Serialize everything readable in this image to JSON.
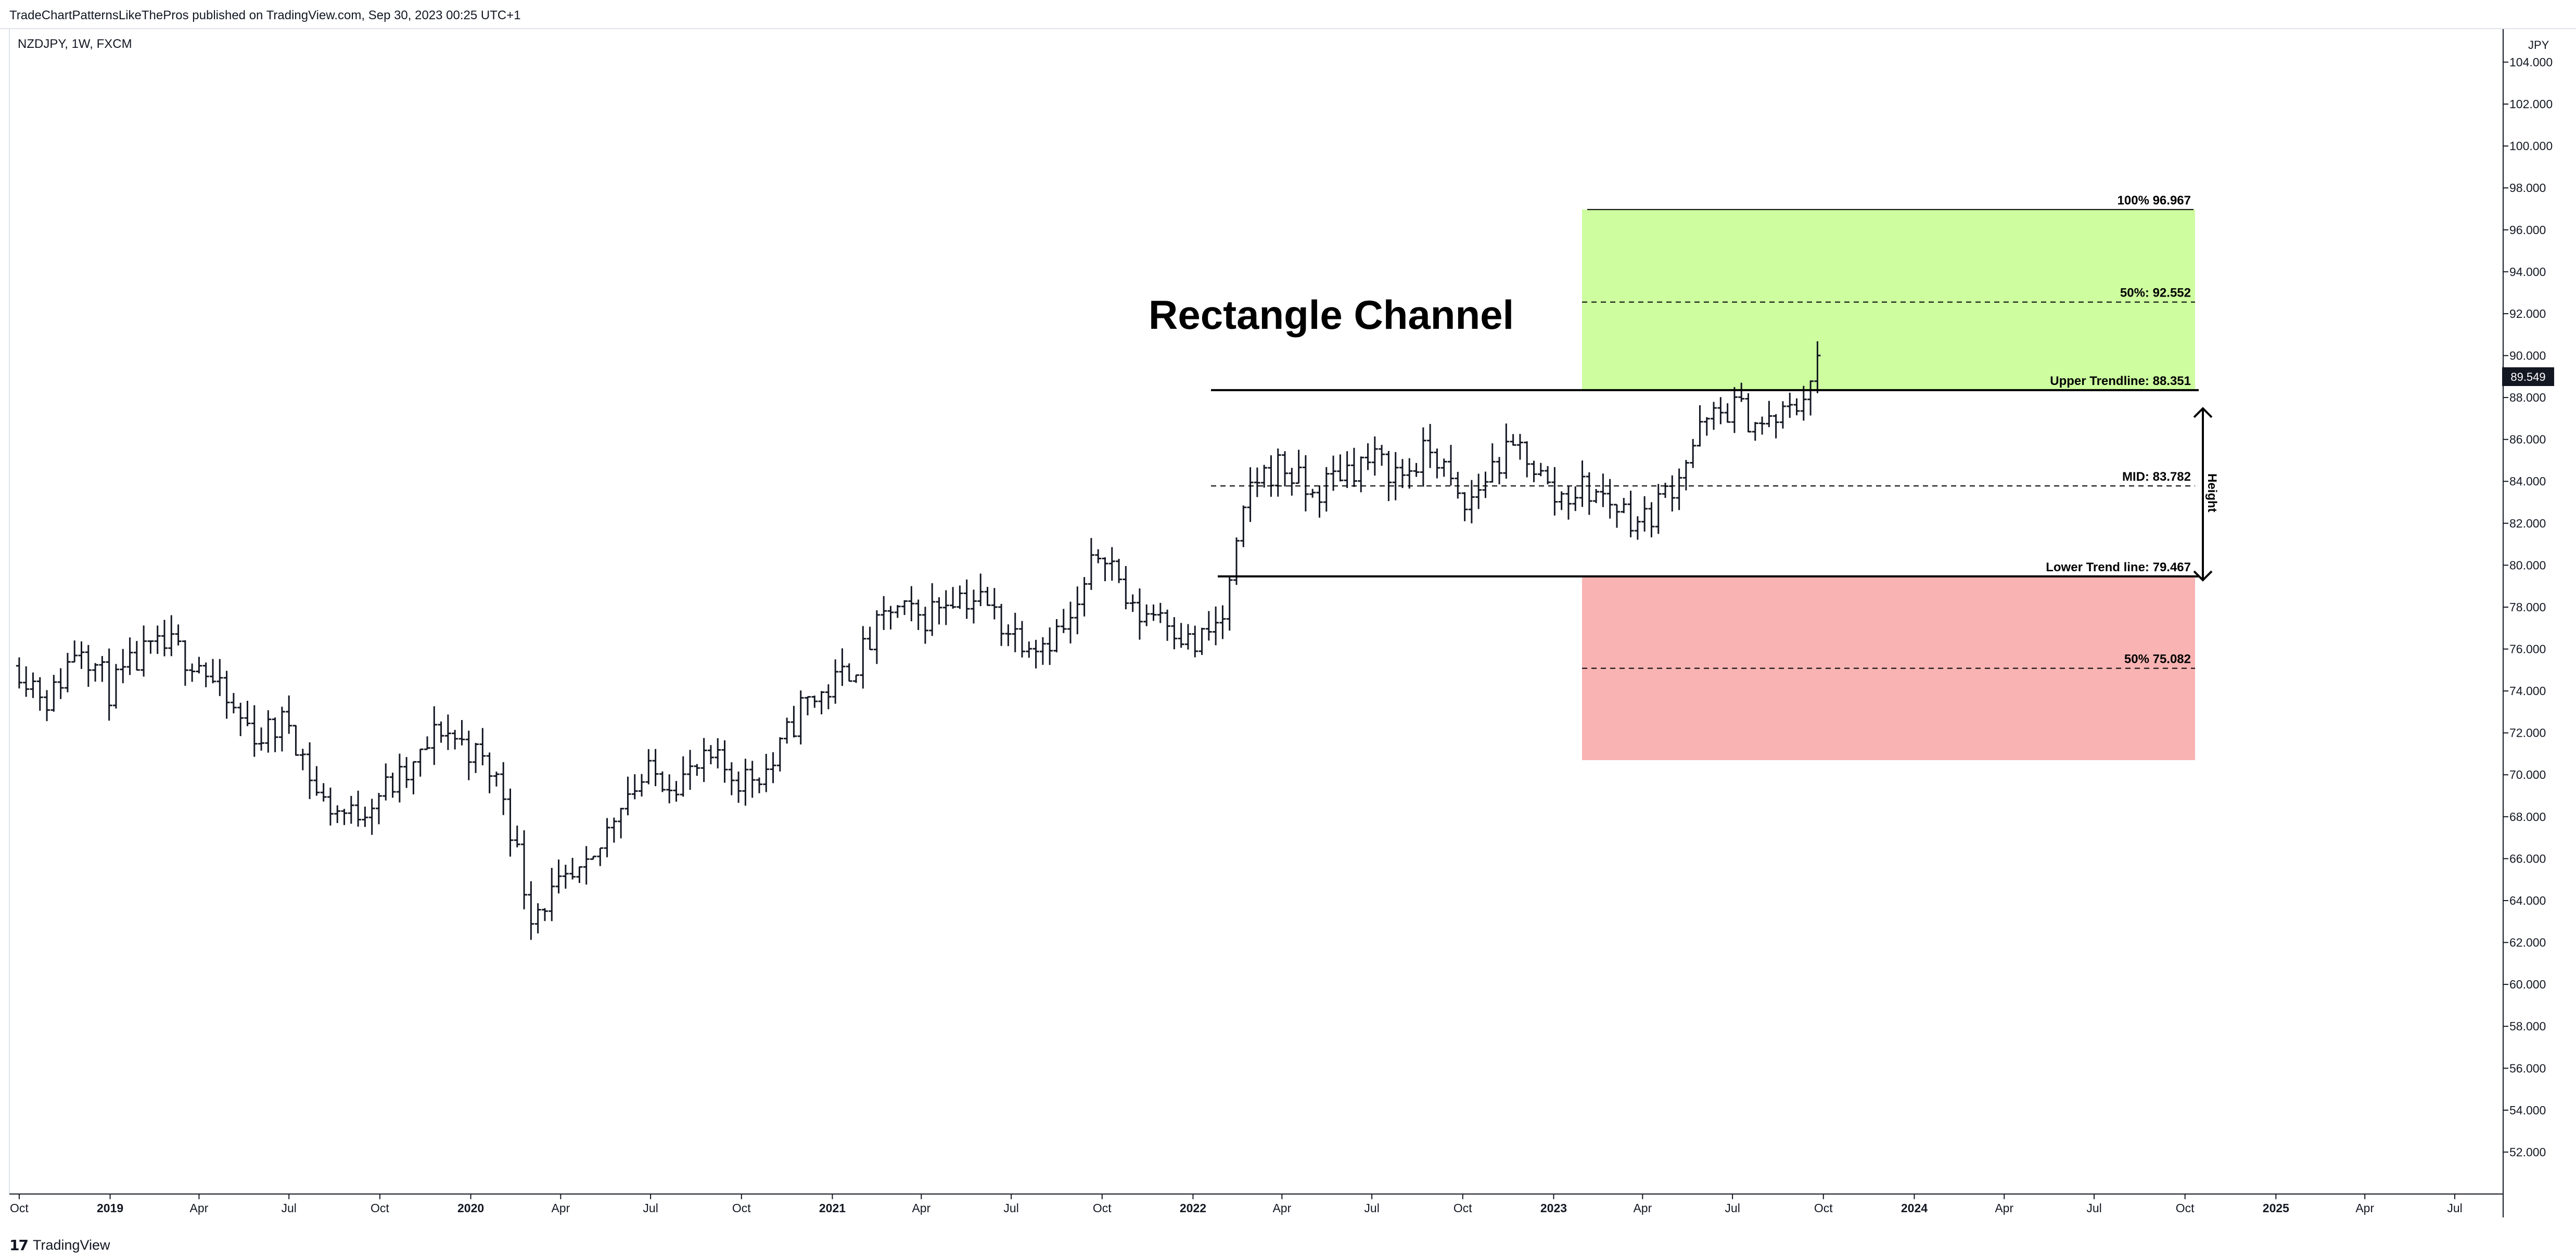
{
  "header": {
    "credit": "TradeChartPatternsLikeThePros published on TradingView.com, Sep 30, 2023 00:25 UTC+1"
  },
  "chart_data": {
    "type": "ohlc",
    "symbol_label": "NZDJPY, 1W, FXCM",
    "currency": "JPY",
    "ylim": [
      50.0,
      105.6
    ],
    "y_ticks": [
      "104.000",
      "102.000",
      "100.000",
      "98.000",
      "96.000",
      "94.000",
      "92.000",
      "90.000",
      "88.000",
      "86.000",
      "84.000",
      "82.000",
      "80.000",
      "78.000",
      "76.000",
      "74.000",
      "72.000",
      "70.000",
      "68.000",
      "66.000",
      "64.000",
      "62.000",
      "60.000",
      "58.000",
      "56.000",
      "54.000",
      "52.000"
    ],
    "x_ticks": [
      "Oct",
      "2019",
      "Apr",
      "Jul",
      "Oct",
      "2020",
      "Apr",
      "Jul",
      "Oct",
      "2021",
      "Apr",
      "Jul",
      "Oct",
      "2022",
      "Apr",
      "Jul",
      "Oct",
      "2023",
      "Apr",
      "Jul",
      "Oct",
      "2024",
      "Apr",
      "Jul",
      "Oct",
      "2025",
      "Apr",
      "Jul"
    ],
    "last_price": "89.549",
    "title": "Rectangle Channel",
    "levels": [
      {
        "label": "100% 96.967",
        "value": 96.967,
        "style": "solid"
      },
      {
        "label": "50%: 92.552",
        "value": 92.552,
        "style": "dashed"
      },
      {
        "label": "Upper Trendline: 88.351",
        "value": 88.351,
        "style": "solid"
      },
      {
        "label": "MID: 83.782",
        "value": 83.782,
        "style": "dashed"
      },
      {
        "label": "Lower Trend line: 79.467",
        "value": 79.467,
        "style": "solid"
      },
      {
        "label": "50% 75.082",
        "value": 75.082,
        "style": "dashed"
      }
    ],
    "target_zones": [
      {
        "name": "upside",
        "from": 88.351,
        "to": 96.967,
        "color": "#cdfd9f"
      },
      {
        "name": "downside",
        "from": 70.7,
        "to": 79.467,
        "color": "#f9b3b3"
      }
    ],
    "height_label": "Height",
    "series": [
      {
        "date": "2018-10-01",
        "close": 75.2
      },
      {
        "date": "2018-11-01",
        "close": 73.5
      },
      {
        "date": "2018-12-01",
        "close": 76.5
      },
      {
        "date": "2019-01-01",
        "close": 74.0
      },
      {
        "date": "2019-02-01",
        "close": 75.6
      },
      {
        "date": "2019-03-01",
        "close": 76.1
      },
      {
        "date": "2019-04-01",
        "close": 75.4
      },
      {
        "date": "2019-05-01",
        "close": 73.2
      },
      {
        "date": "2019-06-01",
        "close": 71.8
      },
      {
        "date": "2019-07-01",
        "close": 72.6
      },
      {
        "date": "2019-08-01",
        "close": 68.8
      },
      {
        "date": "2019-09-01",
        "close": 68.0
      },
      {
        "date": "2019-10-01",
        "close": 69.2
      },
      {
        "date": "2019-11-01",
        "close": 70.0
      },
      {
        "date": "2019-12-01",
        "close": 72.3
      },
      {
        "date": "2020-01-01",
        "close": 71.2
      },
      {
        "date": "2020-02-01",
        "close": 69.5
      },
      {
        "date": "2020-03-01",
        "close": 63.5
      },
      {
        "date": "2020-04-01",
        "close": 64.5
      },
      {
        "date": "2020-05-01",
        "close": 65.3
      },
      {
        "date": "2020-06-01",
        "close": 69.0
      },
      {
        "date": "2020-07-01",
        "close": 70.0
      },
      {
        "date": "2020-08-01",
        "close": 69.8
      },
      {
        "date": "2020-09-01",
        "close": 70.6
      },
      {
        "date": "2020-10-01",
        "close": 69.8
      },
      {
        "date": "2020-11-01",
        "close": 70.4
      },
      {
        "date": "2020-12-01",
        "close": 73.3
      },
      {
        "date": "2021-01-01",
        "close": 74.2
      },
      {
        "date": "2021-02-01",
        "close": 75.8
      },
      {
        "date": "2021-03-01",
        "close": 77.9
      },
      {
        "date": "2021-04-01",
        "close": 77.4
      },
      {
        "date": "2021-05-01",
        "close": 78.7
      },
      {
        "date": "2021-06-01",
        "close": 78.3
      },
      {
        "date": "2021-07-01",
        "close": 76.8
      },
      {
        "date": "2021-08-01",
        "close": 76.4
      },
      {
        "date": "2021-09-01",
        "close": 77.2
      },
      {
        "date": "2021-10-01",
        "close": 81.2
      },
      {
        "date": "2021-11-01",
        "close": 77.6
      },
      {
        "date": "2021-12-01",
        "close": 77.9
      },
      {
        "date": "2022-01-01",
        "close": 76.0
      },
      {
        "date": "2022-02-01",
        "close": 77.5
      },
      {
        "date": "2022-03-01",
        "close": 84.0
      },
      {
        "date": "2022-04-01",
        "close": 84.8
      },
      {
        "date": "2022-05-01",
        "close": 83.2
      },
      {
        "date": "2022-06-01",
        "close": 84.6
      },
      {
        "date": "2022-07-01",
        "close": 85.0
      },
      {
        "date": "2022-08-01",
        "close": 84.3
      },
      {
        "date": "2022-09-01",
        "close": 85.6
      },
      {
        "date": "2022-10-01",
        "close": 82.5
      },
      {
        "date": "2022-11-01",
        "close": 84.8
      },
      {
        "date": "2022-12-01",
        "close": 85.6
      },
      {
        "date": "2023-01-01",
        "close": 83.2
      },
      {
        "date": "2023-02-01",
        "close": 83.7
      },
      {
        "date": "2023-03-01",
        "close": 83.0
      },
      {
        "date": "2023-04-01",
        "close": 82.0
      },
      {
        "date": "2023-05-01",
        "close": 83.9
      },
      {
        "date": "2023-06-01",
        "close": 86.6
      },
      {
        "date": "2023-07-01",
        "close": 87.6
      },
      {
        "date": "2023-08-01",
        "close": 86.6
      },
      {
        "date": "2023-09-01",
        "close": 87.4
      },
      {
        "date": "2023-09-25",
        "close": 89.549
      }
    ]
  },
  "footer": {
    "logo_mark": "17",
    "logo_text": "TradingView"
  }
}
